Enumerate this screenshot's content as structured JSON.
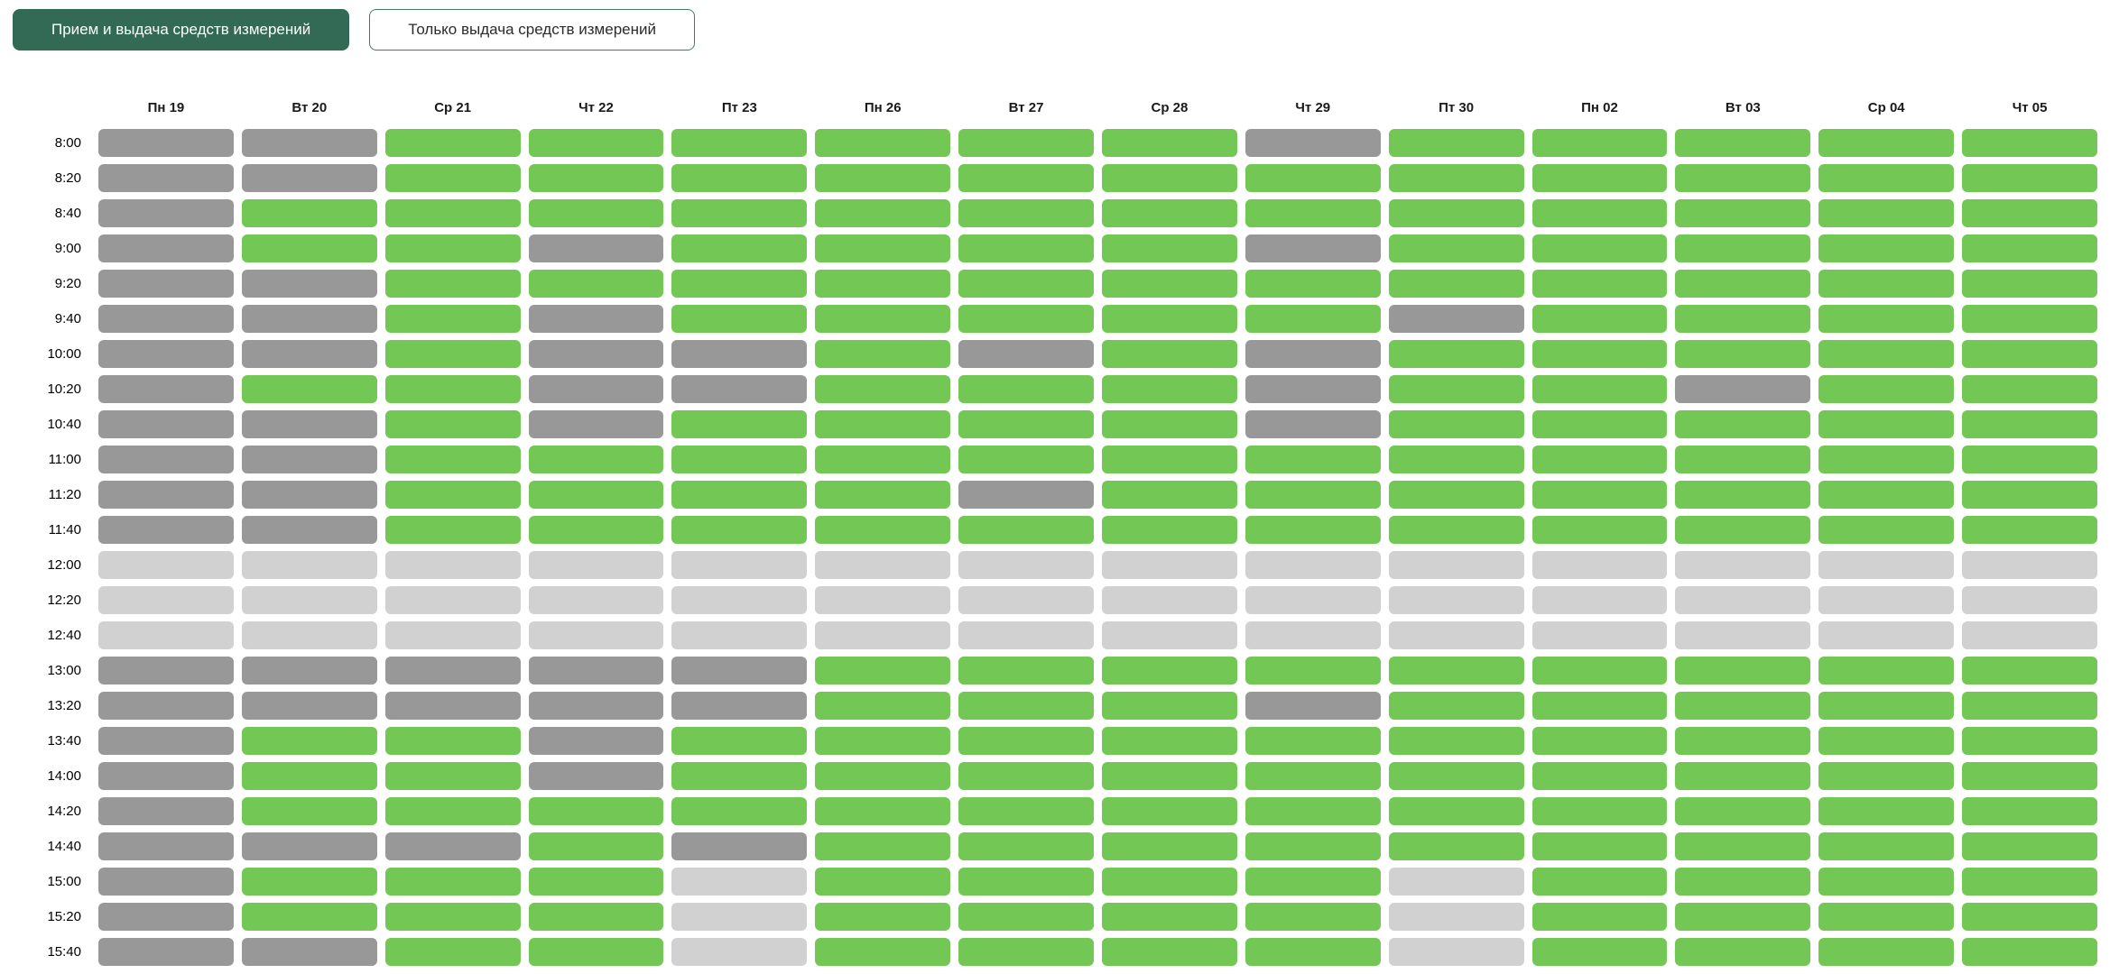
{
  "toolbar": {
    "primary_button_label": "Прием и выдача средств измерений",
    "secondary_button_label": "Только выдача средств измерений"
  },
  "colors": {
    "available_slot": "#73c855",
    "busy_slot": "#989898",
    "blocked_slot": "#d1d1d1",
    "button_active_bg": "#326a55",
    "button_active_text": "#ffffff",
    "button_inactive_border": "#3f7d60",
    "button_inactive_text": "#2b2b2b"
  },
  "schedule": {
    "columns": [
      "Пн 19",
      "Вт 20",
      "Ср 21",
      "Чт 22",
      "Пт 23",
      "Пн 26",
      "Вт 27",
      "Ср 28",
      "Чт 29",
      "Пт 30",
      "Пн 02",
      "Вт 03",
      "Ср 04",
      "Чт 05"
    ],
    "times": [
      "8:00",
      "8:20",
      "8:40",
      "9:00",
      "9:20",
      "9:40",
      "10:00",
      "10:20",
      "10:40",
      "11:00",
      "11:20",
      "11:40",
      "12:00",
      "12:20",
      "12:40",
      "13:00",
      "13:20",
      "13:40",
      "14:00",
      "14:20",
      "14:40",
      "15:00",
      "15:20",
      "15:40"
    ],
    "legend": {
      "g": "available",
      "b": "busy",
      "l": "blocked"
    },
    "rows": [
      "bbggggggbggggg",
      "bbgggggggggggg",
      "bggggggggggggg",
      "bggbggggbggggg",
      "bbgggggggggggg",
      "bbgbgggggbgggg",
      "bbgbbgbgbggggg",
      "bggbbgggbggbgg",
      "bbgbggggbggggg",
      "bbgggggggggggg",
      "bbggggbggggggg",
      "bbgggggggggggg",
      "llllllllllllll",
      "llllllllllllll",
      "llllllllllllll",
      "bbbbbggggggggg",
      "bbbbbgggbggggg",
      "bggbgggggggggg",
      "bggbgggggggggg",
      "bggggggggggggg",
      "bbbgbggggggggg",
      "bggglgggglgggg",
      "bggglgggglgggg",
      "bbgglgggglgggg"
    ]
  }
}
